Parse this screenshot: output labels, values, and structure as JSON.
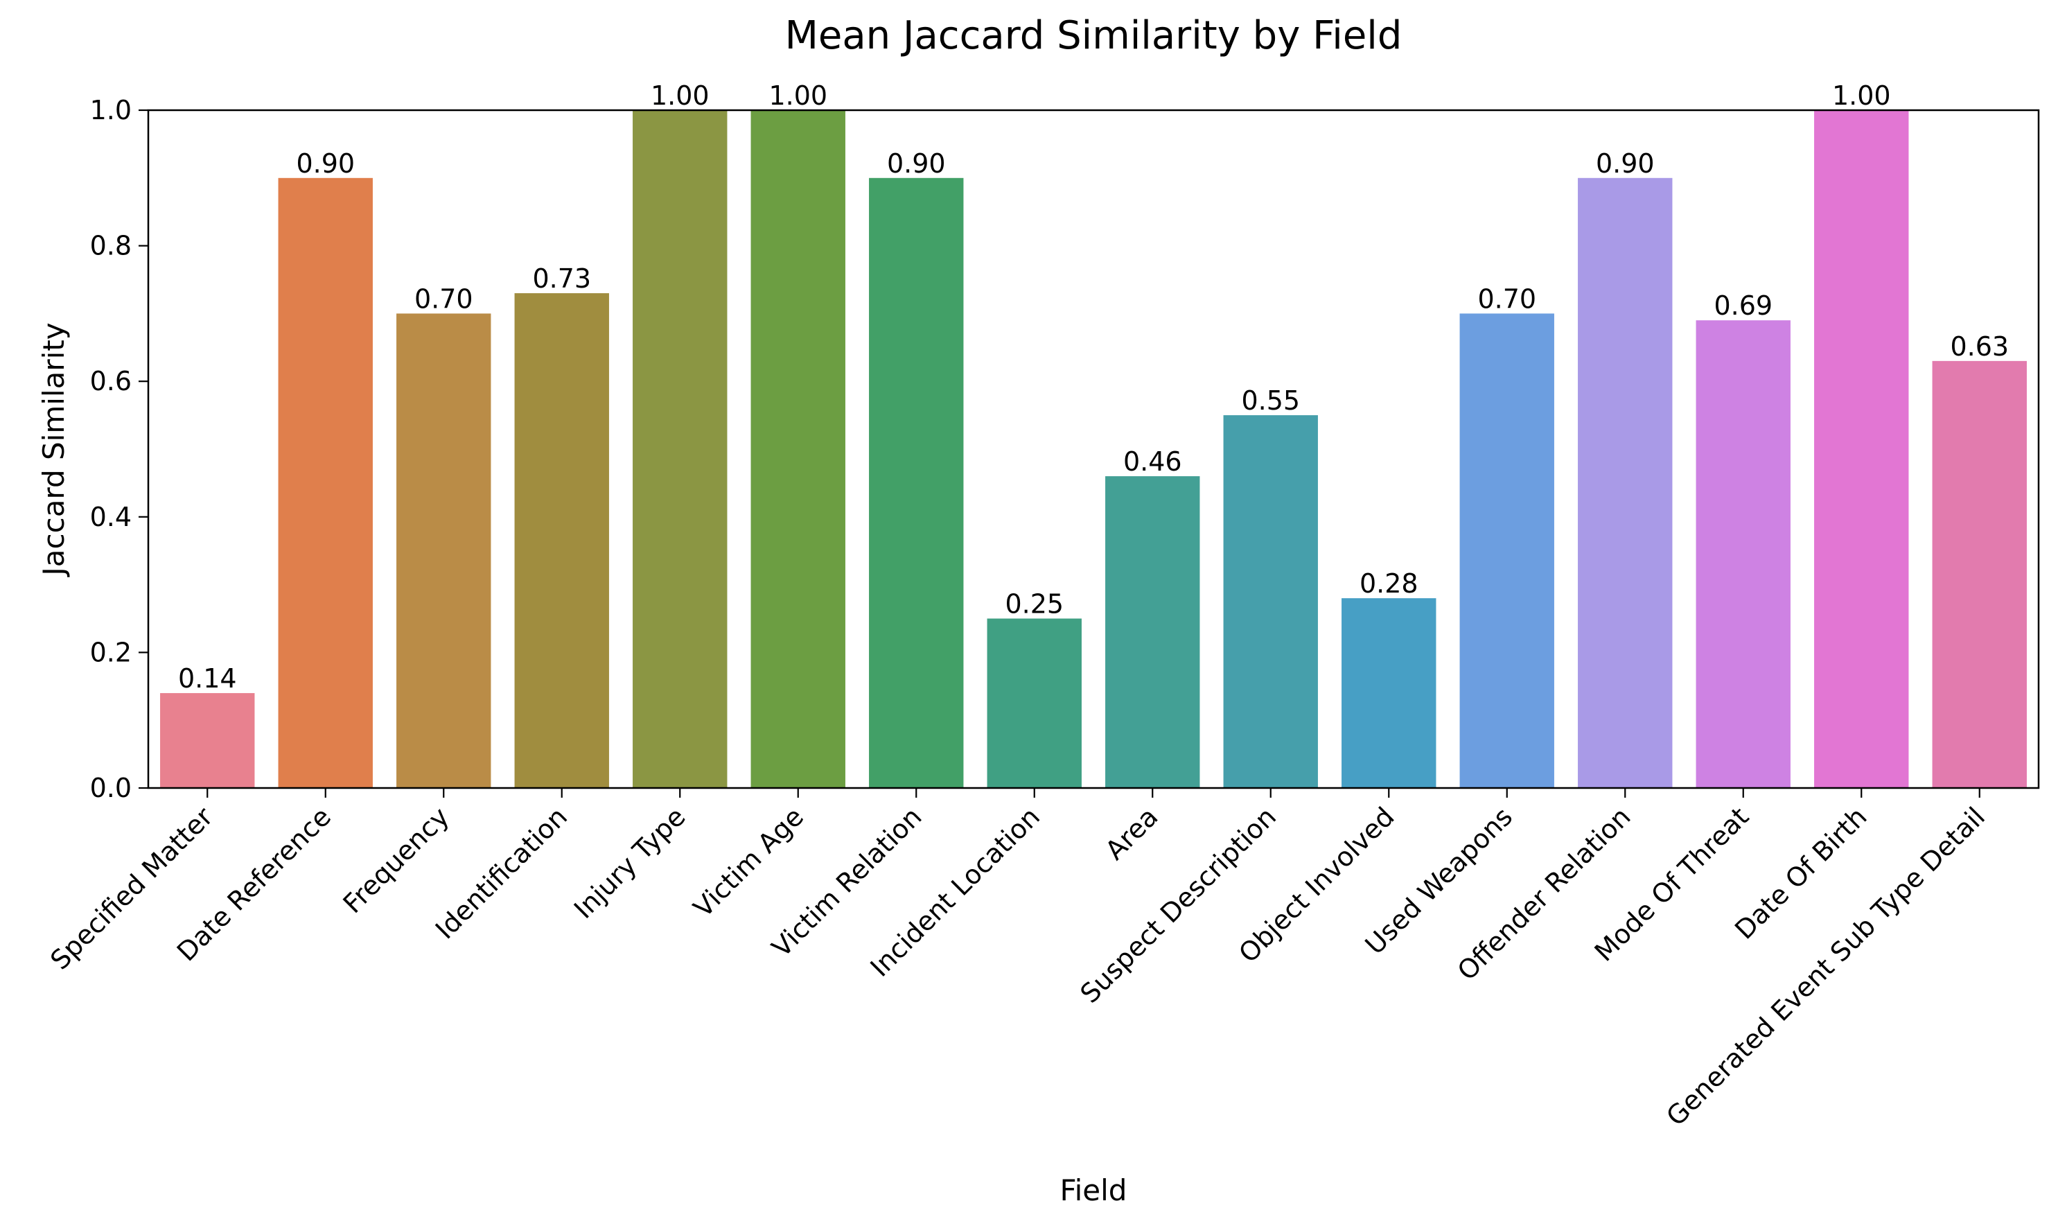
{
  "chart_data": {
    "type": "bar",
    "title": "Mean Jaccard Similarity by Field",
    "xlabel": "Field",
    "ylabel": "Jaccard Similarity",
    "ylim": [
      0,
      1.0
    ],
    "yticks": [
      0.0,
      0.2,
      0.4,
      0.6,
      0.8,
      1.0
    ],
    "ytick_labels": [
      "0.0",
      "0.2",
      "0.4",
      "0.6",
      "0.8",
      "1.0"
    ],
    "grid": false,
    "legend": "none",
    "categories": [
      "Specified Matter",
      "Date Reference",
      "Frequency",
      "Identification",
      "Injury Type",
      "Victim Age",
      "Victim Relation",
      "Incident Location",
      "Area",
      "Suspect Description",
      "Object Involved",
      "Used Weapons",
      "Offender Relation",
      "Mode Of Threat",
      "Date Of Birth",
      "Generated Event Sub Type Detail"
    ],
    "values": [
      0.14,
      0.9,
      0.7,
      0.73,
      1.0,
      1.0,
      0.9,
      0.25,
      0.46,
      0.55,
      0.28,
      0.7,
      0.9,
      0.69,
      1.0,
      0.63
    ],
    "value_labels": [
      "0.14",
      "0.90",
      "0.70",
      "0.73",
      "1.00",
      "1.00",
      "0.90",
      "0.25",
      "0.46",
      "0.55",
      "0.28",
      "0.70",
      "0.90",
      "0.69",
      "1.00",
      "0.63"
    ],
    "colors": [
      "#E8818F",
      "#E07F4C",
      "#BA8C47",
      "#A08D3F",
      "#8B9643",
      "#6C9E42",
      "#42A067",
      "#40A083",
      "#43A095",
      "#469FAB",
      "#479FC5",
      "#6C9EE0",
      "#A99AE7",
      "#CE82E3",
      "#E276D3",
      "#E27BAE"
    ]
  }
}
